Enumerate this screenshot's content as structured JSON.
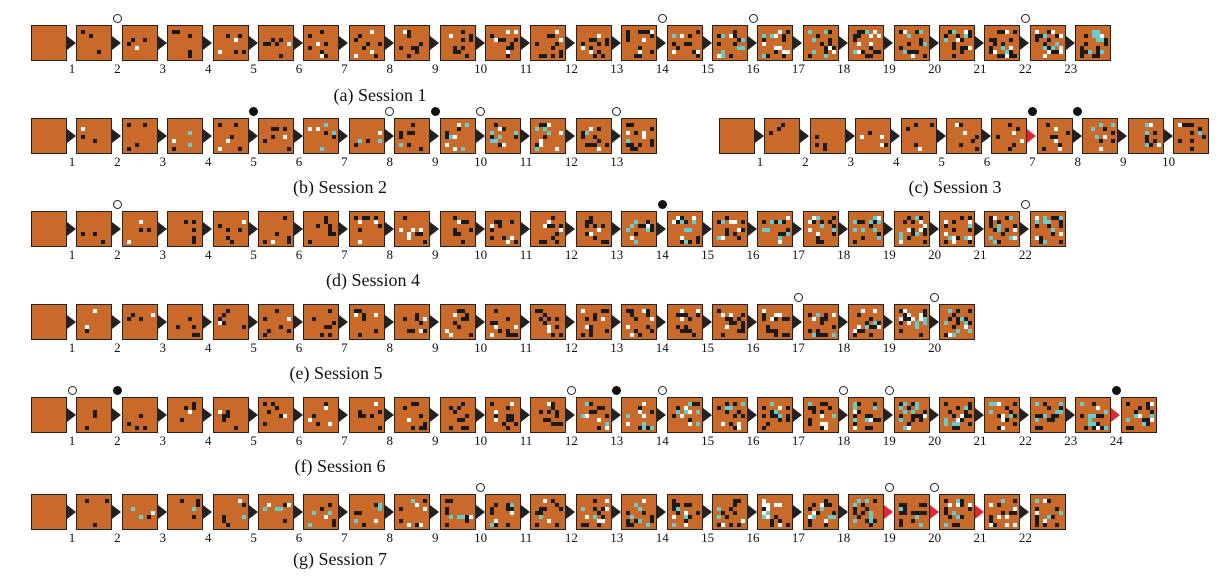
{
  "colors": {
    "tile_background": "#c96a2b",
    "cell_black": "#1a1a1a",
    "cell_white": "#ffffff",
    "cell_cyan": "#66cccc",
    "arrow_default": "#222222",
    "arrow_highlight": "#e0282f",
    "marker_open_fill": "#ffffff",
    "marker_filled": "#111111"
  },
  "legend_markers": [
    "open-circle",
    "filled-circle"
  ],
  "sessions": [
    {
      "id": "a",
      "caption": "(a) Session 1",
      "frame_count": 24,
      "step_labels": [
        "1",
        "2",
        "3",
        "4",
        "5",
        "6",
        "7",
        "8",
        "9",
        "10",
        "11",
        "12",
        "13",
        "14",
        "15",
        "16",
        "17",
        "18",
        "19",
        "20",
        "21",
        "22",
        "23"
      ],
      "open_markers_after_step": [
        2,
        14,
        16,
        22
      ],
      "filled_markers_after_step": [],
      "red_arrows_after_step": [],
      "cyan_from_frame": 15
    },
    {
      "id": "b",
      "caption": "(b) Session 2",
      "frame_count": 14,
      "step_labels": [
        "1",
        "2",
        "3",
        "4",
        "5",
        "6",
        "7",
        "8",
        "9",
        "10",
        "11",
        "12",
        "13"
      ],
      "open_markers_after_step": [
        8,
        10,
        13
      ],
      "filled_markers_after_step": [
        5,
        9
      ],
      "red_arrows_after_step": [],
      "cyan_from_frame": 2
    },
    {
      "id": "c",
      "caption": "(c) Session 3",
      "frame_count": 11,
      "step_labels": [
        "1",
        "2",
        "3",
        "4",
        "5",
        "6",
        "7",
        "8",
        "9",
        "10"
      ],
      "open_markers_after_step": [],
      "filled_markers_after_step": [
        7,
        8
      ],
      "red_arrows_after_step": [
        7
      ],
      "cyan_from_frame": 9
    },
    {
      "id": "d",
      "caption": "(d) Session 4",
      "frame_count": 23,
      "step_labels": [
        "1",
        "2",
        "3",
        "4",
        "5",
        "6",
        "7",
        "8",
        "9",
        "10",
        "11",
        "12",
        "13",
        "14",
        "15",
        "16",
        "17",
        "18",
        "19",
        "20",
        "21",
        "22"
      ],
      "open_markers_after_step": [
        2,
        22
      ],
      "filled_markers_after_step": [
        14
      ],
      "red_arrows_after_step": [],
      "cyan_from_frame": 14
    },
    {
      "id": "e",
      "caption": "(e) Session 5",
      "frame_count": 21,
      "step_labels": [
        "1",
        "2",
        "3",
        "4",
        "5",
        "6",
        "7",
        "8",
        "9",
        "10",
        "11",
        "12",
        "13",
        "14",
        "15",
        "16",
        "17",
        "18",
        "19",
        "20"
      ],
      "open_markers_after_step": [
        17,
        20
      ],
      "filled_markers_after_step": [],
      "red_arrows_after_step": [],
      "cyan_from_frame": 18
    },
    {
      "id": "f",
      "caption": "(f) Session 6",
      "frame_count": 25,
      "step_labels": [
        "1",
        "2",
        "3",
        "4",
        "5",
        "6",
        "7",
        "8",
        "9",
        "10",
        "11",
        "12",
        "13",
        "14",
        "15",
        "16",
        "17",
        "18",
        "19",
        "20",
        "21",
        "22",
        "23",
        "24"
      ],
      "open_markers_after_step": [
        1,
        12,
        14,
        18,
        19
      ],
      "filled_markers_after_step": [
        2,
        13,
        24
      ],
      "red_arrows_after_step": [
        24
      ],
      "cyan_from_frame": 13
    },
    {
      "id": "g",
      "caption": "(g) Session 7",
      "frame_count": 23,
      "step_labels": [
        "1",
        "2",
        "3",
        "4",
        "5",
        "6",
        "7",
        "8",
        "9",
        "10",
        "11",
        "12",
        "13",
        "14",
        "15",
        "16",
        "17",
        "18",
        "19",
        "20",
        "21",
        "22"
      ],
      "open_markers_after_step": [
        10,
        19,
        20
      ],
      "filled_markers_after_step": [],
      "red_arrows_after_step": [
        19,
        20,
        21
      ],
      "cyan_from_frame": 2
    }
  ]
}
